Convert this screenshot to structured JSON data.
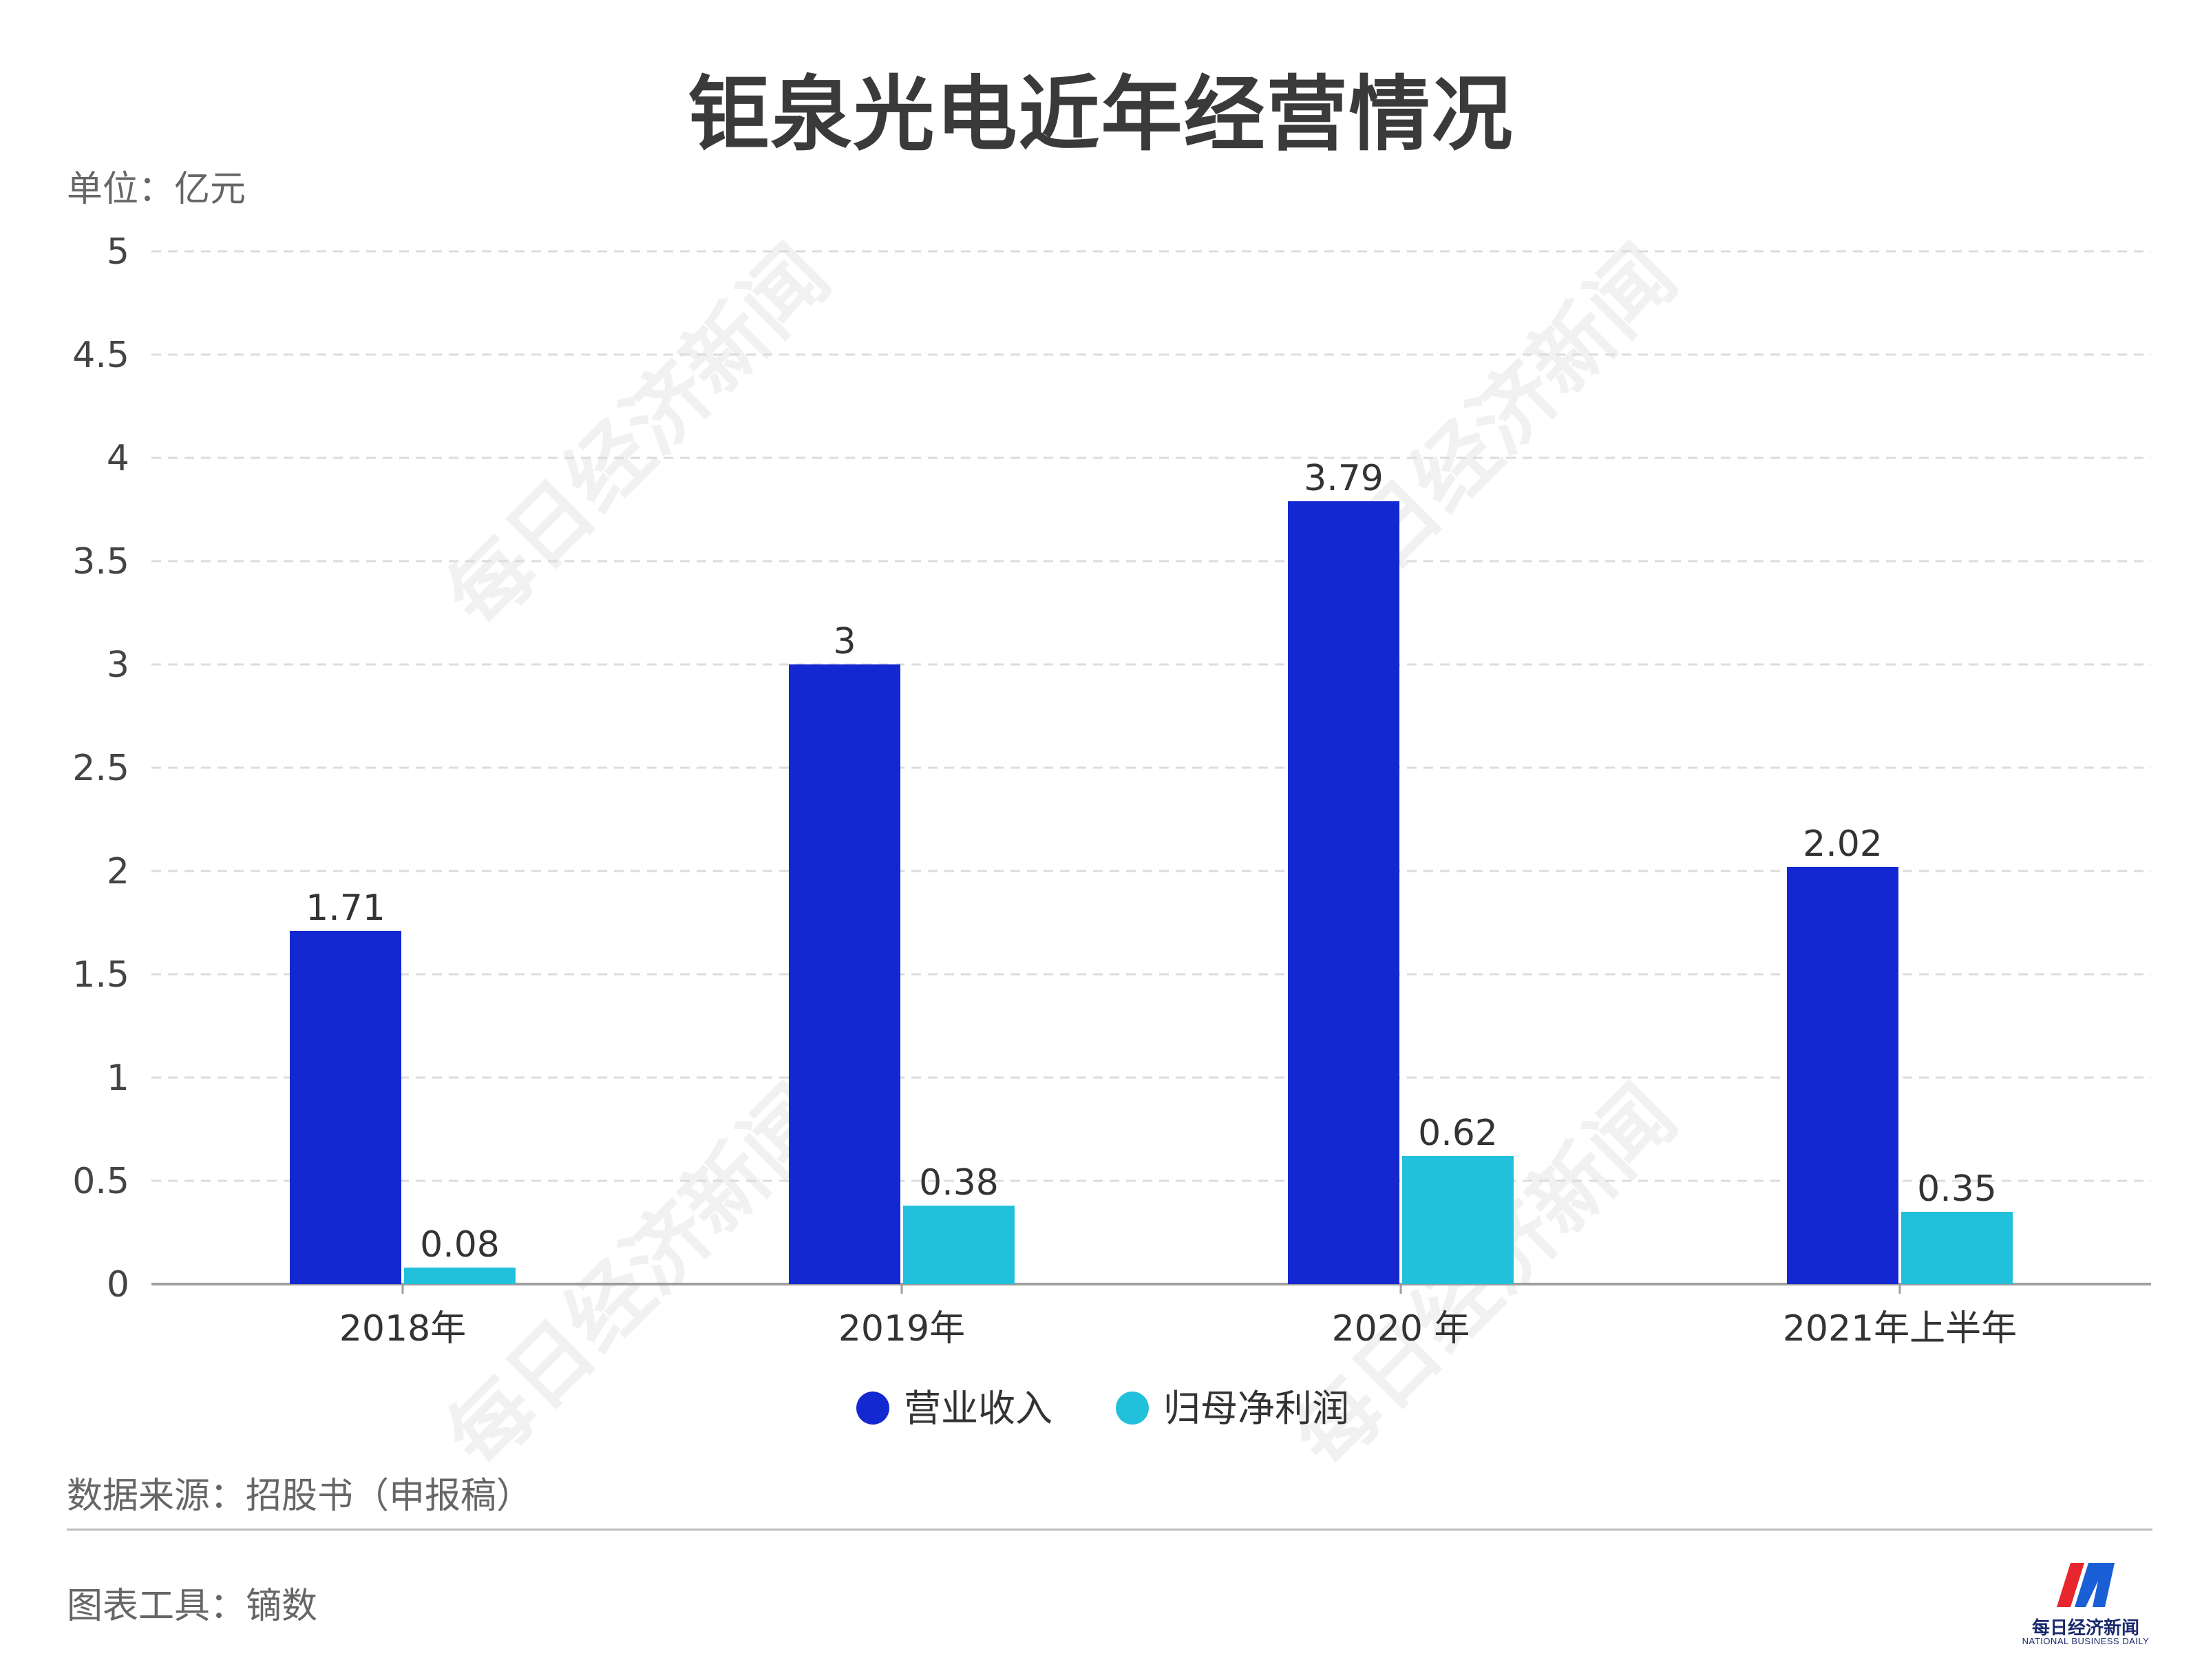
{
  "title": "钜泉光电近年经营情况",
  "unit_label": "单位：亿元",
  "source": "数据来源：招股书（申报稿）",
  "tool": "图表工具：镝数",
  "watermark": "每日经济新闻",
  "logo": {
    "name": "每日经济新闻",
    "subtitle": "NATIONAL BUSINESS DAILY",
    "colors": [
      "#e8262d",
      "#1a5fd6"
    ]
  },
  "colors": {
    "revenue": "#1428d2",
    "profit": "#22c1db",
    "grid": "#dcdcdc",
    "axis": "#9e9e9e"
  },
  "chart_data": {
    "type": "bar",
    "categories": [
      "2018年",
      "2019年",
      "2020 年",
      "2021年上半年"
    ],
    "series": [
      {
        "name": "营业收入",
        "values": [
          1.71,
          3,
          3.79,
          2.02
        ]
      },
      {
        "name": "归母净利润",
        "values": [
          0.08,
          0.38,
          0.62,
          0.35
        ]
      }
    ],
    "ylim": [
      0,
      5
    ],
    "yticks": [
      "0",
      "0.5",
      "1",
      "1.5",
      "2",
      "2.5",
      "3",
      "3.5",
      "4",
      "4.5",
      "5"
    ],
    "value_labels": [
      [
        "1.71",
        "3",
        "3.79",
        "2.02"
      ],
      [
        "0.08",
        "0.38",
        "0.62",
        "0.35"
      ]
    ],
    "grid": true,
    "legend": "bottom-center"
  }
}
